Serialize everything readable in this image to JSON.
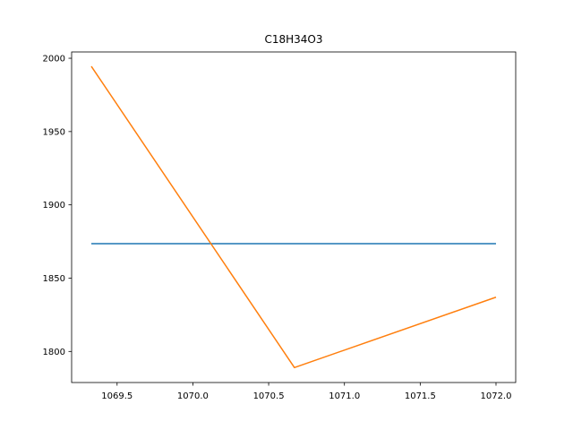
{
  "chart_data": {
    "type": "line",
    "title": "C18H34O3",
    "xlabel": "",
    "ylabel": "",
    "xlim": [
      1069.2,
      1072.13
    ],
    "ylim": [
      1778.8,
      2004.3
    ],
    "xticks": [
      1069.5,
      1070.0,
      1070.5,
      1071.0,
      1071.5,
      1072.0
    ],
    "xtick_labels": [
      "1069.5",
      "1070.0",
      "1070.5",
      "1071.0",
      "1071.5",
      "1072.0"
    ],
    "yticks": [
      1800,
      1850,
      1900,
      1950,
      2000
    ],
    "ytick_labels": [
      "1800",
      "1850",
      "1900",
      "1950",
      "2000"
    ],
    "grid": false,
    "series": [
      {
        "color": "#1f77b4",
        "x": [
          1069.33,
          1072.0
        ],
        "y": [
          1873.5,
          1873.5
        ]
      },
      {
        "color": "#ff7f0e",
        "x": [
          1069.33,
          1070.67,
          1072.0
        ],
        "y": [
          1994.5,
          1789.0,
          1837.0
        ]
      }
    ]
  }
}
